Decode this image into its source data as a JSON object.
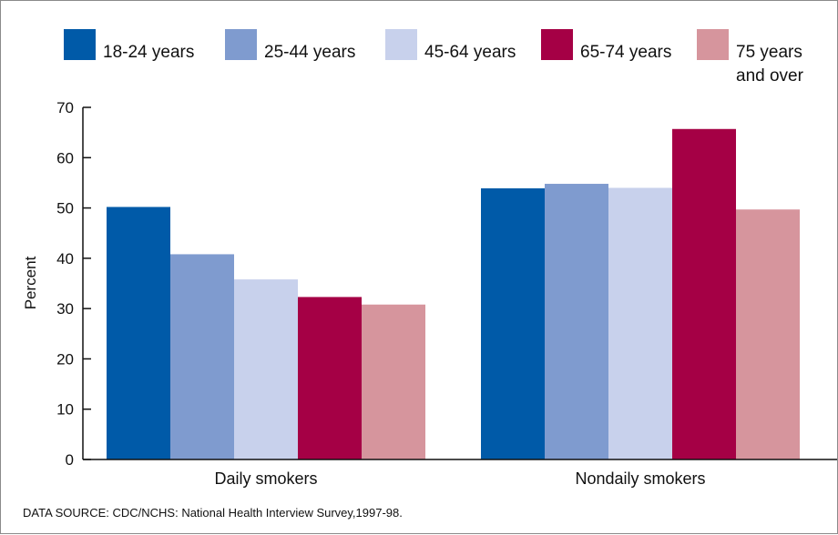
{
  "chart_data": {
    "type": "bar",
    "categories": [
      "Daily smokers",
      "Nondaily smokers"
    ],
    "series": [
      {
        "name": "18-24 years",
        "color": "#005aa8",
        "values": [
          50.2,
          53.9
        ]
      },
      {
        "name": "25-44 years",
        "color": "#7f9bcf",
        "values": [
          40.8,
          54.8
        ]
      },
      {
        "name": "45-64 years",
        "color": "#c8d1ec",
        "values": [
          35.8,
          54.0
        ]
      },
      {
        "name": "65-74 years",
        "color": "#a50045",
        "values": [
          32.3,
          65.7
        ]
      },
      {
        "name": "75 years and over",
        "color": "#d6959d",
        "values": [
          30.8,
          49.7
        ]
      }
    ],
    "ylabel": "Percent",
    "ylim": [
      0,
      70
    ],
    "yticks": [
      0,
      10,
      20,
      30,
      40,
      50,
      60,
      70
    ],
    "legend_position": "top",
    "grid": false
  },
  "legend_lines": [
    [
      "18-24 years"
    ],
    [
      "25-44 years"
    ],
    [
      "45-64 years"
    ],
    [
      "65-74 years"
    ],
    [
      "75 years",
      "and over"
    ]
  ],
  "source": "DATA SOURCE: CDC/NCHS: National Health Interview Survey,1997-98."
}
